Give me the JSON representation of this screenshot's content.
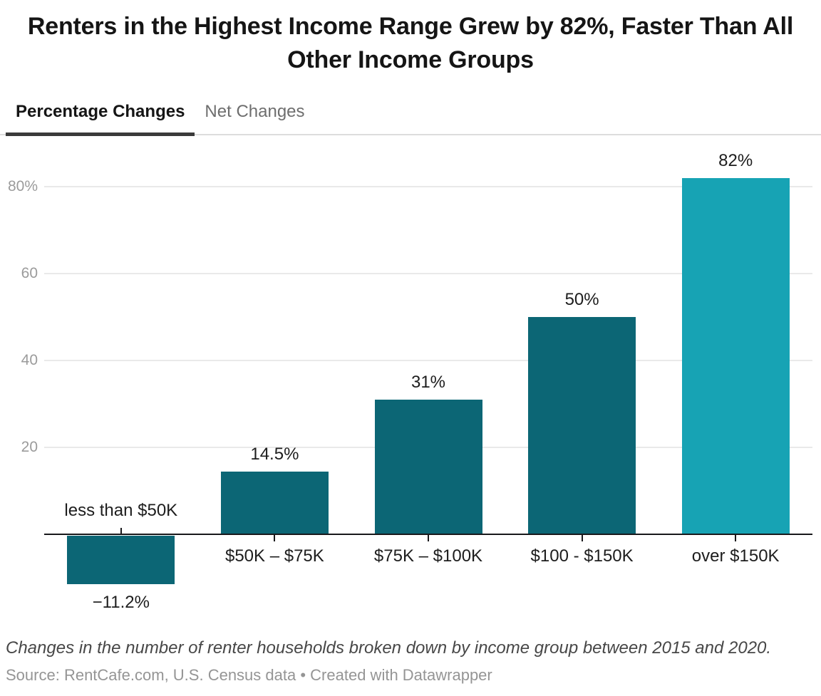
{
  "header": {
    "title": "Renters in the Highest Income Range Grew by 82%, Faster Than All Other Income Groups"
  },
  "tabs": {
    "percentage": {
      "label": "Percentage Changes"
    },
    "net": {
      "label": "Net Changes"
    }
  },
  "chart_data": {
    "type": "bar",
    "title": "Renters in the Highest Income Range Grew by 82%, Faster Than All Other Income Groups",
    "categories": [
      "less than $50K",
      "$50K – $75K",
      "$75K – $100K",
      "$100 - $150K",
      "over $150K"
    ],
    "values": [
      -11.2,
      14.5,
      31,
      50,
      82
    ],
    "value_labels": [
      "−11.2%",
      "14.5%",
      "31%",
      "50%",
      "82%"
    ],
    "bar_colors": [
      "#0c6675",
      "#0c6675",
      "#0c6675",
      "#0c6675",
      "#17a3b4"
    ],
    "yticks": [
      {
        "value": 20,
        "label": "20"
      },
      {
        "value": 40,
        "label": "40"
      },
      {
        "value": 60,
        "label": "60"
      },
      {
        "value": 80,
        "label": "80%"
      }
    ],
    "ylim": [
      -15,
      86
    ],
    "xlabel": "",
    "ylabel": "",
    "grid": "horizontal-on",
    "legend": "none",
    "colors": {
      "bar_dark": "#0c6675",
      "bar_highlight": "#17a3b4",
      "axis": "#18181b",
      "gridline": "#e9e9e9"
    }
  },
  "footer": {
    "note": "Changes in the number of renter households broken down by income group between 2015 and 2020.",
    "source_label": "Source:",
    "source_text": "RentCafe.com, U.S. Census data",
    "separator": "•",
    "credit": "Created with Datawrapper"
  }
}
